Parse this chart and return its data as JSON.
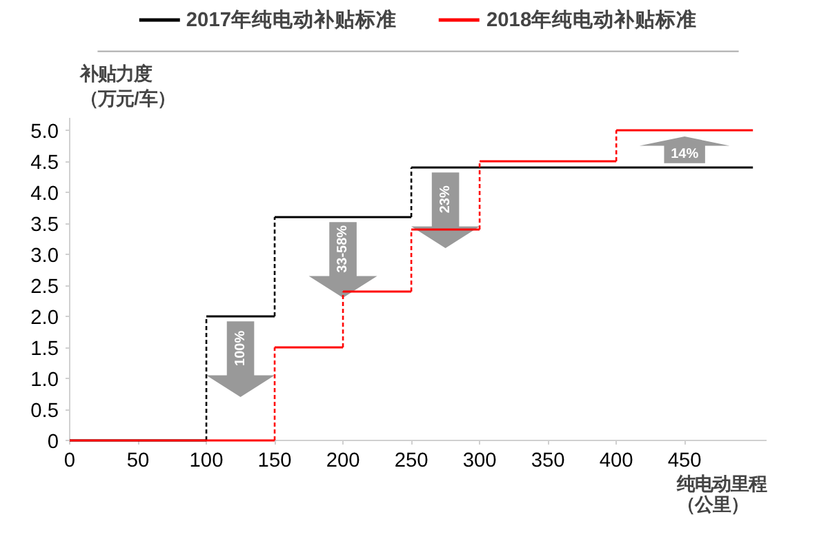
{
  "chart_data": {
    "type": "step",
    "xlabel": "纯电动里程（公里）",
    "ylabel": "补贴力度（万元/车）",
    "series": [
      {
        "name": "2017年纯电动补贴标准",
        "color": "#000000",
        "x": [
          0,
          100,
          150,
          250,
          500
        ],
        "values": [
          0,
          2.0,
          3.6,
          4.4,
          4.4
        ]
      },
      {
        "name": "2018年纯电动补贴标准",
        "color": "#ff0000",
        "x": [
          0,
          150,
          200,
          250,
          300,
          400,
          500
        ],
        "values": [
          0,
          1.5,
          2.4,
          3.4,
          4.5,
          5.0,
          5.0
        ]
      }
    ],
    "xlim": [
      0,
      510
    ],
    "xticks": [
      0,
      50,
      100,
      150,
      200,
      250,
      300,
      350,
      400,
      450
    ],
    "ylim": [
      0,
      5.2
    ],
    "yticks": [
      0,
      {
        "value": 0.5,
        "label": "0.5"
      },
      {
        "value": 1,
        "label": "1.0"
      },
      {
        "value": 1.5,
        "label": "1.5"
      },
      {
        "value": 2,
        "label": "2.0"
      },
      {
        "value": 2.5,
        "label": "2.5"
      },
      {
        "value": 3,
        "label": "3.0"
      },
      {
        "value": 3.5,
        "label": "3.5"
      },
      {
        "value": 4,
        "label": "4.0"
      },
      {
        "value": 4.5,
        "label": "4.5"
      },
      {
        "value": 5,
        "label": "5.0"
      }
    ],
    "annotations": [
      {
        "text": "100%",
        "x": 125,
        "y": 2.0
      },
      {
        "text": "33-58%",
        "x": 200,
        "y": 3.6
      },
      {
        "text": "23%",
        "x": 275,
        "y": 4.4
      },
      {
        "text": "14%",
        "x": 450,
        "y": 4.4
      }
    ],
    "grid": false,
    "legend": "top",
    "marker": "none"
  }
}
